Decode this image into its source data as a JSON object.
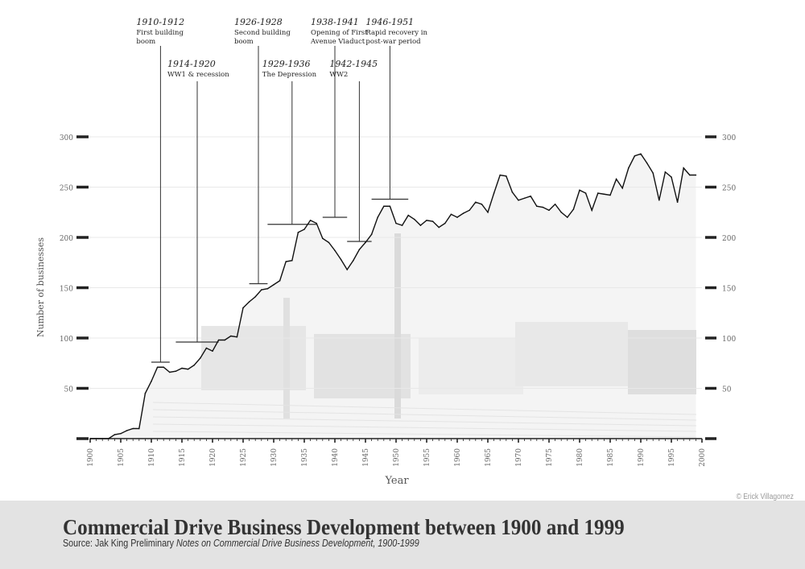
{
  "chart_data": {
    "type": "line",
    "title": "Commercial Drive Business Development between 1900 and 1999",
    "xlabel": "Year",
    "ylabel": "Number of businesses",
    "xlim": [
      1900,
      2000
    ],
    "ylim": [
      0,
      300
    ],
    "x_ticks": [
      1900,
      1905,
      1910,
      1915,
      1920,
      1925,
      1930,
      1935,
      1940,
      1945,
      1950,
      1955,
      1960,
      1965,
      1970,
      1975,
      1980,
      1985,
      1990,
      1995,
      2000
    ],
    "y_ticks": [
      50,
      100,
      150,
      200,
      250,
      300
    ],
    "grid": "horizontal",
    "line_color": "#111111",
    "x": [
      1900,
      1901,
      1902,
      1903,
      1904,
      1905,
      1906,
      1907,
      1908,
      1909,
      1910,
      1911,
      1912,
      1913,
      1914,
      1915,
      1916,
      1917,
      1918,
      1919,
      1920,
      1921,
      1922,
      1923,
      1924,
      1925,
      1926,
      1927,
      1928,
      1929,
      1930,
      1931,
      1932,
      1933,
      1934,
      1935,
      1936,
      1937,
      1938,
      1939,
      1940,
      1941,
      1942,
      1943,
      1944,
      1945,
      1946,
      1947,
      1948,
      1949,
      1950,
      1951,
      1952,
      1953,
      1954,
      1955,
      1956,
      1957,
      1958,
      1959,
      1960,
      1961,
      1962,
      1963,
      1964,
      1965,
      1966,
      1967,
      1968,
      1969,
      1970,
      1971,
      1972,
      1973,
      1974,
      1975,
      1976,
      1977,
      1978,
      1979,
      1980,
      1981,
      1982,
      1983,
      1984,
      1985,
      1986,
      1987,
      1988,
      1989,
      1990,
      1991,
      1992,
      1993,
      1994,
      1995,
      1996,
      1997,
      1998,
      1999
    ],
    "values": [
      0,
      0,
      0,
      0,
      4,
      5,
      8,
      10,
      10,
      45,
      57,
      71,
      71,
      66,
      67,
      70,
      69,
      73,
      80,
      90,
      87,
      98,
      98,
      102,
      101,
      130,
      136,
      141,
      148,
      149,
      153,
      157,
      176,
      177,
      205,
      208,
      217,
      214,
      199,
      195,
      187,
      178,
      168,
      177,
      188,
      195,
      203,
      220,
      231,
      231,
      214,
      212,
      222,
      218,
      212,
      217,
      216,
      210,
      214,
      223,
      220,
      224,
      227,
      235,
      233,
      225,
      244,
      262,
      261,
      245,
      237,
      239,
      241,
      231,
      230,
      227,
      233,
      225,
      220,
      228,
      247,
      244,
      227,
      244,
      243,
      242,
      258,
      249,
      269,
      281,
      283,
      274,
      264,
      237,
      265,
      260,
      235,
      269,
      262,
      262
    ],
    "annotations": [
      {
        "years": "1910-1912",
        "text_lines": [
          "First building",
          "boom"
        ],
        "start": 1910,
        "end": 1912,
        "marker_value": 76,
        "row": 1
      },
      {
        "years": "1914-1920",
        "text_lines": [
          "WW1 & recession"
        ],
        "start": 1914,
        "end": 1920,
        "marker_value": 96,
        "row": 2
      },
      {
        "years": "1926-1928",
        "text_lines": [
          "Second building",
          "boom"
        ],
        "start": 1926,
        "end": 1928,
        "marker_value": 154,
        "row": 1
      },
      {
        "years": "1929-1936",
        "text_lines": [
          "The Depression"
        ],
        "start": 1929,
        "end": 1936,
        "marker_value": 213,
        "row": 2
      },
      {
        "years": "1938-1941",
        "text_lines": [
          "Opening of First",
          "Avenue Viaduct"
        ],
        "start": 1938,
        "end": 1941,
        "marker_value": 220,
        "row": 1
      },
      {
        "years": "1942-1945",
        "text_lines": [
          "WW2"
        ],
        "start": 1942,
        "end": 1945,
        "marker_value": 196,
        "row": 2
      },
      {
        "years": "1946-1951",
        "text_lines": [
          "Rapid recovery in",
          "post-war period"
        ],
        "start": 1946,
        "end": 1951,
        "marker_value": 238,
        "row": 1
      }
    ]
  },
  "footer": {
    "title": "Commercial Drive Business Development between 1900 and 1999",
    "source_prefix": "Source: Jak King Preliminary ",
    "source_italic": "Notes on Commercial Drive Business Development, 1900-1999",
    "copyright": "© Erick Villagomez"
  }
}
